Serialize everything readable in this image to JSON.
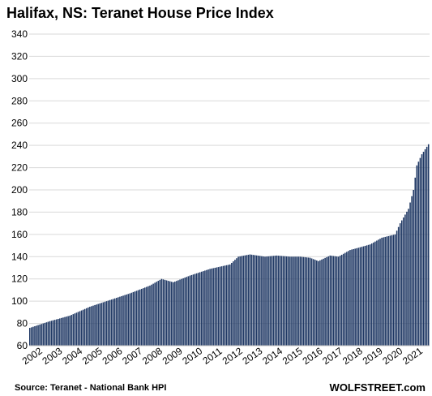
{
  "chart_data": {
    "type": "bar",
    "title": "Halifax, NS: Teranet House Price Index",
    "xlabel": "",
    "ylabel": "",
    "ylim": [
      60,
      340
    ],
    "yticks": [
      60,
      80,
      100,
      120,
      140,
      160,
      180,
      200,
      220,
      240,
      260,
      280,
      300,
      320,
      340
    ],
    "x_tick_labels": [
      "2002",
      "2003",
      "2004",
      "2005",
      "2006",
      "2007",
      "2008",
      "2009",
      "2010",
      "2011",
      "2012",
      "2013",
      "2014",
      "2015",
      "2016",
      "2017",
      "2018",
      "2019",
      "2020",
      "2021"
    ],
    "frequency": "monthly",
    "start": "2002-01",
    "end": "2021-12",
    "grid": true,
    "bar_color": "#1f3864",
    "anchors": [
      [
        "2002-01",
        76
      ],
      [
        "2003-01",
        82
      ],
      [
        "2004-01",
        87
      ],
      [
        "2004-07",
        91
      ],
      [
        "2005-01",
        95
      ],
      [
        "2006-01",
        101
      ],
      [
        "2007-01",
        107
      ],
      [
        "2008-01",
        114
      ],
      [
        "2008-08",
        120
      ],
      [
        "2009-03",
        117
      ],
      [
        "2010-01",
        123
      ],
      [
        "2011-01",
        129
      ],
      [
        "2012-01",
        133
      ],
      [
        "2012-06",
        140
      ],
      [
        "2013-01",
        142
      ],
      [
        "2013-10",
        140
      ],
      [
        "2014-05",
        141
      ],
      [
        "2015-01",
        140
      ],
      [
        "2015-07",
        140
      ],
      [
        "2016-01",
        139
      ],
      [
        "2016-06",
        136
      ],
      [
        "2017-01",
        141
      ],
      [
        "2017-06",
        140
      ],
      [
        "2018-01",
        146
      ],
      [
        "2018-06",
        148
      ],
      [
        "2019-01",
        151
      ],
      [
        "2019-08",
        157
      ],
      [
        "2020-04",
        160
      ],
      [
        "2020-07",
        170
      ],
      [
        "2020-12",
        183
      ],
      [
        "2021-03",
        200
      ],
      [
        "2021-05",
        222
      ],
      [
        "2021-08",
        232
      ],
      [
        "2021-12",
        241
      ]
    ]
  },
  "footer": {
    "source": "Source: Teranet - National Bank HPI",
    "brand": "WOLFSTREET.com"
  }
}
